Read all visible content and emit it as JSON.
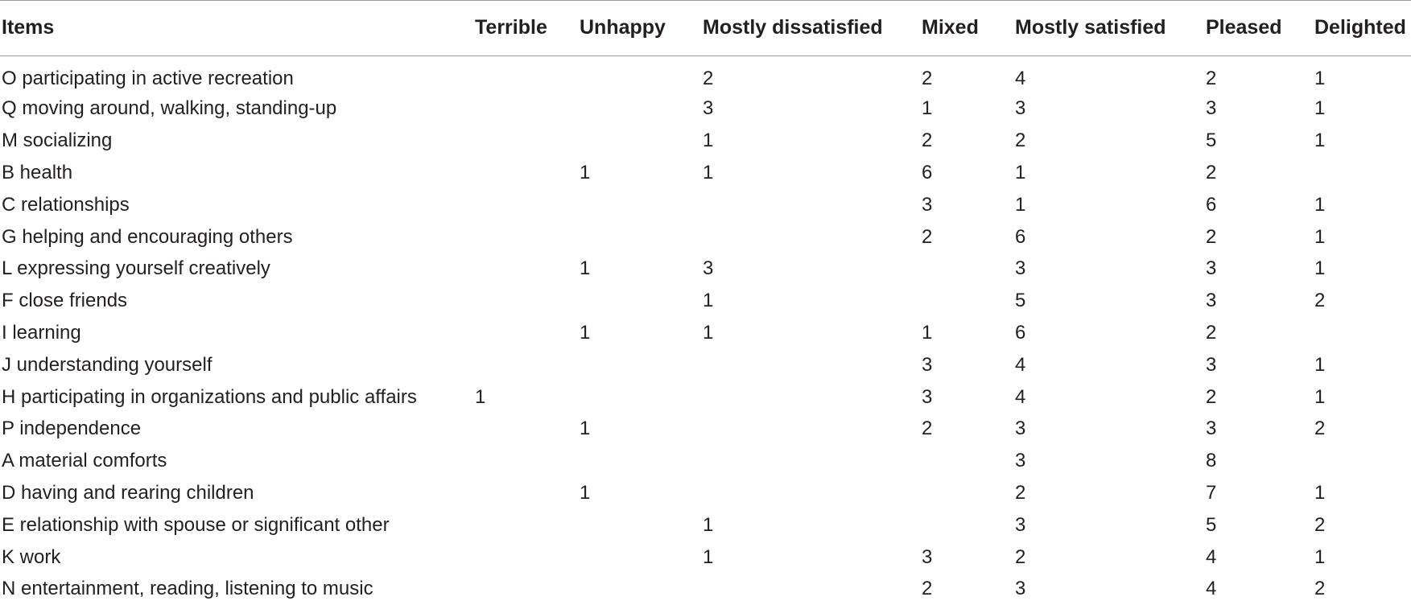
{
  "table": {
    "headers": [
      "Items",
      "Terrible",
      "Unhappy",
      "Mostly dissatisfied",
      "Mixed",
      "Mostly satisfied",
      "Pleased",
      "Delighted"
    ],
    "rows": [
      [
        "O participating in active recreation",
        "",
        "",
        "2",
        "2",
        "4",
        "2",
        "1"
      ],
      [
        "Q moving around, walking, standing-up",
        "",
        "",
        "3",
        "1",
        "3",
        "3",
        "1"
      ],
      [
        "M socializing",
        "",
        "",
        "1",
        "2",
        "2",
        "5",
        "1"
      ],
      [
        "B health",
        "",
        "1",
        "1",
        "6",
        "1",
        "2",
        ""
      ],
      [
        "C relationships",
        "",
        "",
        "",
        "3",
        "1",
        "6",
        "1"
      ],
      [
        "G helping and encouraging others",
        "",
        "",
        "",
        "2",
        "6",
        "2",
        "1"
      ],
      [
        "L expressing yourself creatively",
        "",
        "1",
        "3",
        "",
        "3",
        "3",
        "1"
      ],
      [
        "F close friends",
        "",
        "",
        "1",
        "",
        "5",
        "3",
        "2"
      ],
      [
        "I learning",
        "",
        "1",
        "1",
        "1",
        "6",
        "2",
        ""
      ],
      [
        "J understanding yourself",
        "",
        "",
        "",
        "3",
        "4",
        "3",
        "1"
      ],
      [
        "H participating in organizations and public affairs",
        "1",
        "",
        "",
        "3",
        "4",
        "2",
        "1"
      ],
      [
        "P independence",
        "",
        "1",
        "",
        "2",
        "3",
        "3",
        "2"
      ],
      [
        "A material comforts",
        "",
        "",
        "",
        "",
        "3",
        "8",
        ""
      ],
      [
        "D having and rearing children",
        "",
        "1",
        "",
        "",
        "2",
        "7",
        "1"
      ],
      [
        "E relationship with spouse or significant other",
        "",
        "",
        "1",
        "",
        "3",
        "5",
        "2"
      ],
      [
        "K work",
        "",
        "",
        "1",
        "3",
        "2",
        "4",
        "1"
      ],
      [
        "N entertainment, reading, listening to music",
        "",
        "",
        "",
        "2",
        "3",
        "4",
        "2"
      ]
    ]
  }
}
